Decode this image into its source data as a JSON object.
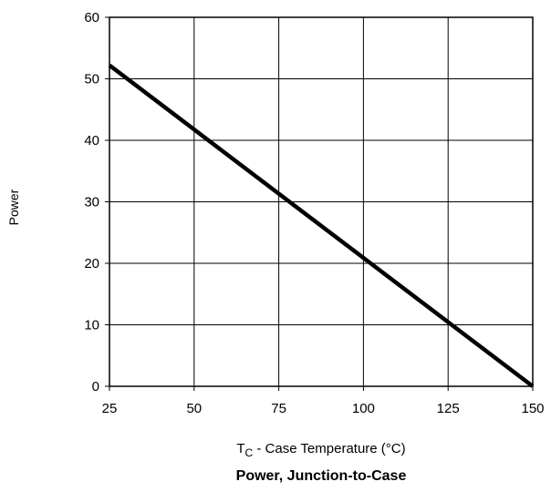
{
  "chart_data": {
    "type": "line",
    "title": "Power, Junction-to-Case",
    "xlabel": {
      "main": "T",
      "subscript": "C",
      "rest": " -  Case Temperature (°C)"
    },
    "ylabel": "Power",
    "xlim": [
      25,
      150
    ],
    "ylim": [
      0,
      60
    ],
    "xticks": [
      25,
      50,
      75,
      100,
      125,
      150
    ],
    "yticks": [
      0,
      10,
      20,
      30,
      40,
      50,
      60
    ],
    "grid": true,
    "series": [
      {
        "x": [
          25,
          150
        ],
        "y": [
          52.2,
          0
        ],
        "color": "#000000"
      }
    ]
  }
}
